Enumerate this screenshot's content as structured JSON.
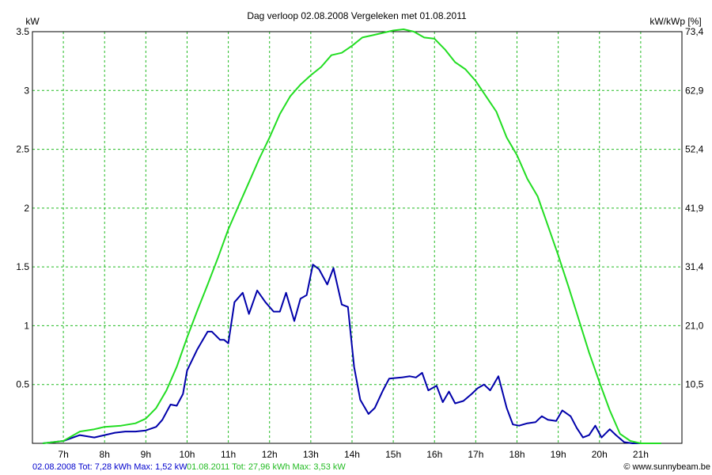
{
  "chart_data": {
    "type": "line",
    "title": "Dag  verloop 02.08.2008    Vergeleken met 01.08.2011",
    "ylabel_left": "kW",
    "ylabel_right": "kW/kWp [%]",
    "x_ticks": [
      "7h",
      "8h",
      "9h",
      "10h",
      "11h",
      "12h",
      "13h",
      "14h",
      "15h",
      "16h",
      "17h",
      "18h",
      "19h",
      "20h",
      "21h"
    ],
    "y_left_ticks": [
      "0.5",
      "1",
      "1.5",
      "2",
      "2.5",
      "3",
      "3.5"
    ],
    "y_right_ticks": [
      "10,5",
      "21,0",
      "31,4",
      "41,9",
      "52,4",
      "62,9",
      "73,4"
    ],
    "xlim": [
      6.25,
      22.0
    ],
    "ylim": [
      0,
      3.5
    ],
    "grid": true,
    "series": [
      {
        "name": "02.08.2008",
        "color": "#0000aa",
        "x": [
          6.5,
          7.0,
          7.4,
          7.75,
          8.0,
          8.25,
          8.5,
          8.75,
          9.0,
          9.25,
          9.4,
          9.6,
          9.75,
          9.9,
          10.0,
          10.25,
          10.5,
          10.6,
          10.8,
          10.9,
          11.0,
          11.15,
          11.35,
          11.5,
          11.7,
          11.9,
          12.1,
          12.25,
          12.4,
          12.6,
          12.75,
          12.9,
          13.05,
          13.2,
          13.4,
          13.55,
          13.75,
          13.9,
          14.05,
          14.2,
          14.4,
          14.55,
          14.75,
          14.9,
          15.2,
          15.4,
          15.55,
          15.7,
          15.85,
          16.05,
          16.2,
          16.35,
          16.5,
          16.7,
          16.9,
          17.05,
          17.2,
          17.35,
          17.55,
          17.75,
          17.9,
          18.05,
          18.25,
          18.45,
          18.6,
          18.75,
          18.95,
          19.1,
          19.3,
          19.45,
          19.6,
          19.75,
          19.9,
          20.05,
          20.25,
          20.4,
          20.6,
          20.8,
          21.0,
          21.2
        ],
        "values": [
          0.0,
          0.02,
          0.07,
          0.05,
          0.07,
          0.09,
          0.1,
          0.1,
          0.11,
          0.14,
          0.2,
          0.33,
          0.32,
          0.42,
          0.62,
          0.8,
          0.95,
          0.95,
          0.88,
          0.88,
          0.85,
          1.2,
          1.28,
          1.1,
          1.3,
          1.2,
          1.12,
          1.12,
          1.28,
          1.04,
          1.23,
          1.26,
          1.52,
          1.48,
          1.35,
          1.49,
          1.18,
          1.16,
          0.65,
          0.37,
          0.25,
          0.3,
          0.45,
          0.55,
          0.56,
          0.57,
          0.56,
          0.6,
          0.45,
          0.49,
          0.35,
          0.44,
          0.34,
          0.36,
          0.42,
          0.47,
          0.5,
          0.45,
          0.57,
          0.3,
          0.16,
          0.15,
          0.17,
          0.18,
          0.23,
          0.2,
          0.19,
          0.28,
          0.23,
          0.13,
          0.05,
          0.07,
          0.15,
          0.05,
          0.12,
          0.07,
          0.01,
          0.0,
          0.0,
          0.0
        ]
      },
      {
        "name": "01.08.2011",
        "color": "#22dd22",
        "x": [
          6.5,
          7.0,
          7.4,
          7.75,
          8.0,
          8.4,
          8.75,
          9.0,
          9.25,
          9.5,
          9.75,
          10.0,
          10.25,
          10.5,
          10.75,
          11.0,
          11.25,
          11.5,
          11.75,
          12.0,
          12.25,
          12.5,
          12.75,
          13.0,
          13.25,
          13.5,
          13.75,
          14.0,
          14.25,
          14.5,
          14.75,
          15.0,
          15.25,
          15.5,
          15.75,
          16.0,
          16.25,
          16.5,
          16.75,
          17.0,
          17.25,
          17.5,
          17.75,
          18.0,
          18.25,
          18.5,
          18.75,
          19.0,
          19.25,
          19.5,
          19.75,
          20.0,
          20.25,
          20.5,
          20.75,
          21.0,
          21.25,
          21.5
        ],
        "values": [
          0.0,
          0.02,
          0.1,
          0.12,
          0.14,
          0.15,
          0.17,
          0.21,
          0.3,
          0.45,
          0.65,
          0.9,
          1.13,
          1.35,
          1.58,
          1.82,
          2.02,
          2.22,
          2.42,
          2.6,
          2.8,
          2.95,
          3.05,
          3.13,
          3.2,
          3.3,
          3.32,
          3.38,
          3.45,
          3.47,
          3.49,
          3.51,
          3.52,
          3.5,
          3.45,
          3.44,
          3.35,
          3.24,
          3.18,
          3.08,
          2.95,
          2.82,
          2.6,
          2.45,
          2.25,
          2.1,
          1.85,
          1.6,
          1.33,
          1.05,
          0.77,
          0.52,
          0.28,
          0.08,
          0.02,
          0.0,
          0.0,
          0.0
        ]
      }
    ]
  },
  "footer": {
    "series1_text": "02.08.2008 Tot: 7,28 kWh Max: 1,52 kW",
    "series2_text": "01.08.2011 Tot: 27,96 kWh Max: 3,53 kW",
    "copyright": "© www.sunnybeam.be"
  }
}
